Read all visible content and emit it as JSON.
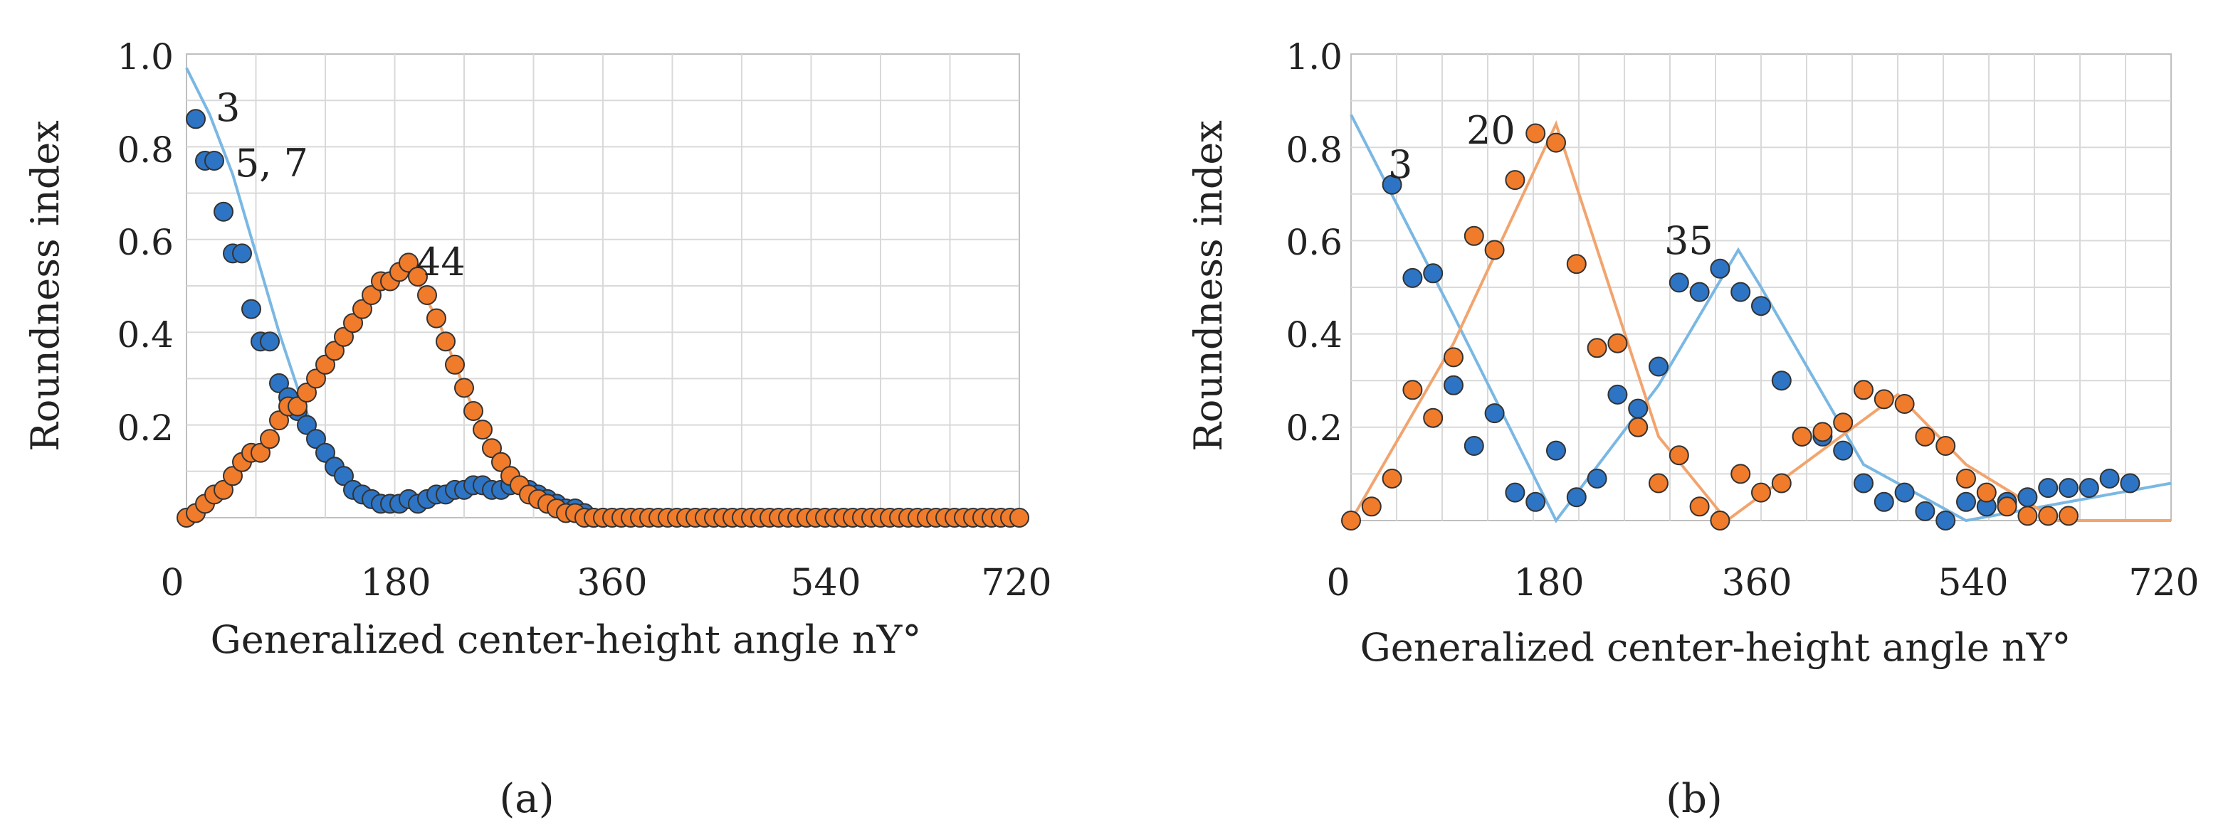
{
  "chart_data": [
    {
      "type": "scatter",
      "panel_label": "(a)",
      "ylabel": "Roundness index",
      "xlabel": "Generalized center-height angle nY°",
      "xlim": [
        0,
        720
      ],
      "ylim": [
        0,
        1.0
      ],
      "x_ticks": [
        "0",
        "180",
        "360",
        "540",
        "720"
      ],
      "y_ticks": [
        "0.2",
        "0.4",
        "0.6",
        "0.8",
        "1.0"
      ],
      "grid": true,
      "annotations": [
        {
          "text": "3",
          "x": 25,
          "y": 0.86
        },
        {
          "text": "5, 7",
          "x": 40,
          "y": 0.77
        },
        {
          "text": "44",
          "x": 190,
          "y": 0.55
        }
      ],
      "series": [
        {
          "color": "#2d74c4",
          "line_color": "#7ab8e3",
          "points": [
            [
              8,
              0.86
            ],
            [
              16,
              0.77
            ],
            [
              24,
              0.77
            ],
            [
              32,
              0.66
            ],
            [
              40,
              0.57
            ],
            [
              48,
              0.57
            ],
            [
              56,
              0.45
            ],
            [
              64,
              0.38
            ],
            [
              72,
              0.38
            ],
            [
              80,
              0.29
            ],
            [
              88,
              0.26
            ],
            [
              96,
              0.23
            ],
            [
              104,
              0.2
            ],
            [
              112,
              0.17
            ],
            [
              120,
              0.14
            ],
            [
              128,
              0.11
            ],
            [
              136,
              0.09
            ],
            [
              144,
              0.06
            ],
            [
              152,
              0.05
            ],
            [
              160,
              0.04
            ],
            [
              168,
              0.03
            ],
            [
              176,
              0.03
            ],
            [
              184,
              0.03
            ],
            [
              192,
              0.04
            ],
            [
              200,
              0.03
            ],
            [
              208,
              0.04
            ],
            [
              216,
              0.05
            ],
            [
              224,
              0.05
            ],
            [
              232,
              0.06
            ],
            [
              240,
              0.06
            ],
            [
              248,
              0.07
            ],
            [
              256,
              0.07
            ],
            [
              264,
              0.06
            ],
            [
              272,
              0.06
            ],
            [
              280,
              0.07
            ],
            [
              288,
              0.07
            ],
            [
              296,
              0.06
            ],
            [
              304,
              0.05
            ],
            [
              312,
              0.04
            ],
            [
              320,
              0.03
            ],
            [
              328,
              0.02
            ],
            [
              336,
              0.02
            ],
            [
              344,
              0.01
            ],
            [
              352,
              0.0
            ],
            [
              360,
              0.0
            ]
          ],
          "line": [
            [
              0,
              0.97
            ],
            [
              20,
              0.87
            ],
            [
              40,
              0.74
            ],
            [
              60,
              0.57
            ],
            [
              80,
              0.4
            ],
            [
              100,
              0.25
            ],
            [
              120,
              0.13
            ],
            [
              140,
              0.07
            ],
            [
              160,
              0.04
            ],
            [
              180,
              0.04
            ],
            [
              220,
              0.05
            ],
            [
              260,
              0.06
            ],
            [
              290,
              0.06
            ],
            [
              320,
              0.03
            ],
            [
              340,
              0.01
            ],
            [
              360,
              0.0
            ]
          ]
        },
        {
          "color": "#f07b2a",
          "line_color": "#f2a46e",
          "points": [
            [
              0,
              0.0
            ],
            [
              8,
              0.01
            ],
            [
              16,
              0.03
            ],
            [
              24,
              0.05
            ],
            [
              32,
              0.06
            ],
            [
              40,
              0.09
            ],
            [
              48,
              0.12
            ],
            [
              56,
              0.14
            ],
            [
              64,
              0.14
            ],
            [
              72,
              0.17
            ],
            [
              80,
              0.21
            ],
            [
              88,
              0.24
            ],
            [
              96,
              0.24
            ],
            [
              104,
              0.27
            ],
            [
              112,
              0.3
            ],
            [
              120,
              0.33
            ],
            [
              128,
              0.36
            ],
            [
              136,
              0.39
            ],
            [
              144,
              0.42
            ],
            [
              152,
              0.45
            ],
            [
              160,
              0.48
            ],
            [
              168,
              0.51
            ],
            [
              176,
              0.51
            ],
            [
              184,
              0.53
            ],
            [
              192,
              0.55
            ],
            [
              200,
              0.52
            ],
            [
              208,
              0.48
            ],
            [
              216,
              0.43
            ],
            [
              224,
              0.38
            ],
            [
              232,
              0.33
            ],
            [
              240,
              0.28
            ],
            [
              248,
              0.23
            ],
            [
              256,
              0.19
            ],
            [
              264,
              0.15
            ],
            [
              272,
              0.12
            ],
            [
              280,
              0.09
            ],
            [
              288,
              0.07
            ],
            [
              296,
              0.05
            ],
            [
              304,
              0.04
            ],
            [
              312,
              0.03
            ],
            [
              320,
              0.02
            ],
            [
              328,
              0.01
            ],
            [
              336,
              0.01
            ],
            [
              344,
              0.0
            ],
            [
              352,
              0.0
            ],
            [
              360,
              0.0
            ],
            [
              368,
              0.0
            ],
            [
              376,
              0.0
            ],
            [
              384,
              0.0
            ],
            [
              392,
              0.0
            ],
            [
              400,
              0.0
            ],
            [
              408,
              0.0
            ],
            [
              416,
              0.0
            ],
            [
              424,
              0.0
            ],
            [
              432,
              0.0
            ],
            [
              440,
              0.0
            ],
            [
              448,
              0.0
            ],
            [
              456,
              0.0
            ],
            [
              464,
              0.0
            ],
            [
              472,
              0.0
            ],
            [
              480,
              0.0
            ],
            [
              488,
              0.0
            ],
            [
              496,
              0.0
            ],
            [
              504,
              0.0
            ],
            [
              512,
              0.0
            ],
            [
              520,
              0.0
            ],
            [
              528,
              0.0
            ],
            [
              536,
              0.0
            ],
            [
              544,
              0.0
            ],
            [
              552,
              0.0
            ],
            [
              560,
              0.0
            ],
            [
              568,
              0.0
            ],
            [
              576,
              0.0
            ],
            [
              584,
              0.0
            ],
            [
              592,
              0.0
            ],
            [
              600,
              0.0
            ],
            [
              608,
              0.0
            ],
            [
              616,
              0.0
            ],
            [
              624,
              0.0
            ],
            [
              632,
              0.0
            ],
            [
              640,
              0.0
            ],
            [
              648,
              0.0
            ],
            [
              656,
              0.0
            ],
            [
              664,
              0.0
            ],
            [
              672,
              0.0
            ],
            [
              680,
              0.0
            ],
            [
              688,
              0.0
            ],
            [
              696,
              0.0
            ],
            [
              704,
              0.0
            ],
            [
              712,
              0.0
            ],
            [
              720,
              0.0
            ]
          ],
          "line": [
            [
              0,
              0.0
            ],
            [
              40,
              0.08
            ],
            [
              80,
              0.2
            ],
            [
              120,
              0.33
            ],
            [
              160,
              0.47
            ],
            [
              190,
              0.55
            ],
            [
              200,
              0.51
            ],
            [
              220,
              0.41
            ],
            [
              240,
              0.28
            ],
            [
              260,
              0.17
            ],
            [
              280,
              0.09
            ],
            [
              310,
              0.03
            ],
            [
              340,
              0.0
            ],
            [
              720,
              0.0
            ]
          ]
        }
      ]
    },
    {
      "type": "scatter",
      "panel_label": "(b)",
      "ylabel": "Roundness index",
      "xlabel": "Generalized center-height angle nY°",
      "xlim": [
        0,
        720
      ],
      "ylim": [
        0,
        1.0
      ],
      "x_ticks": [
        "0",
        "180",
        "360",
        "540",
        "720"
      ],
      "y_ticks": [
        "0.2",
        "0.4",
        "0.6",
        "0.8",
        "1.0"
      ],
      "grid": true,
      "annotations": [
        {
          "text": "3",
          "x": 50,
          "y": 0.72
        },
        {
          "text": "20",
          "x": 140,
          "y": 0.83
        },
        {
          "text": "35",
          "x": 305,
          "y": 0.55
        }
      ],
      "series": [
        {
          "color": "#2d74c4",
          "line_color": "#7ab8e3",
          "points": [
            [
              36,
              0.72
            ],
            [
              54,
              0.52
            ],
            [
              72,
              0.53
            ],
            [
              90,
              0.29
            ],
            [
              108,
              0.16
            ],
            [
              126,
              0.23
            ],
            [
              144,
              0.06
            ],
            [
              162,
              0.04
            ],
            [
              180,
              0.15
            ],
            [
              198,
              0.05
            ],
            [
              216,
              0.09
            ],
            [
              234,
              0.27
            ],
            [
              252,
              0.24
            ],
            [
              270,
              0.33
            ],
            [
              288,
              0.51
            ],
            [
              306,
              0.49
            ],
            [
              324,
              0.54
            ],
            [
              342,
              0.49
            ],
            [
              360,
              0.46
            ],
            [
              378,
              0.3
            ],
            [
              396,
              0.18
            ],
            [
              414,
              0.18
            ],
            [
              432,
              0.15
            ],
            [
              450,
              0.08
            ],
            [
              468,
              0.04
            ],
            [
              486,
              0.06
            ],
            [
              504,
              0.02
            ],
            [
              522,
              0.0
            ],
            [
              540,
              0.04
            ],
            [
              558,
              0.03
            ],
            [
              576,
              0.04
            ],
            [
              594,
              0.05
            ],
            [
              612,
              0.07
            ],
            [
              630,
              0.07
            ],
            [
              648,
              0.07
            ],
            [
              666,
              0.09
            ],
            [
              684,
              0.08
            ]
          ],
          "line": [
            [
              0,
              0.87
            ],
            [
              90,
              0.44
            ],
            [
              180,
              0.0
            ],
            [
              270,
              0.29
            ],
            [
              340,
              0.58
            ],
            [
              360,
              0.5
            ],
            [
              450,
              0.12
            ],
            [
              540,
              0.0
            ],
            [
              720,
              0.08
            ]
          ]
        },
        {
          "color": "#f07b2a",
          "line_color": "#f2a46e",
          "points": [
            [
              0,
              0.0
            ],
            [
              18,
              0.03
            ],
            [
              36,
              0.09
            ],
            [
              54,
              0.28
            ],
            [
              72,
              0.22
            ],
            [
              90,
              0.35
            ],
            [
              108,
              0.61
            ],
            [
              126,
              0.58
            ],
            [
              144,
              0.73
            ],
            [
              162,
              0.83
            ],
            [
              180,
              0.81
            ],
            [
              198,
              0.55
            ],
            [
              216,
              0.37
            ],
            [
              234,
              0.38
            ],
            [
              252,
              0.2
            ],
            [
              270,
              0.08
            ],
            [
              288,
              0.14
            ],
            [
              306,
              0.03
            ],
            [
              324,
              0.0
            ],
            [
              342,
              0.1
            ],
            [
              360,
              0.06
            ],
            [
              378,
              0.08
            ],
            [
              396,
              0.18
            ],
            [
              414,
              0.19
            ],
            [
              432,
              0.21
            ],
            [
              450,
              0.28
            ],
            [
              468,
              0.26
            ],
            [
              486,
              0.25
            ],
            [
              504,
              0.18
            ],
            [
              522,
              0.16
            ],
            [
              540,
              0.09
            ],
            [
              558,
              0.06
            ],
            [
              576,
              0.03
            ],
            [
              594,
              0.01
            ],
            [
              612,
              0.01
            ],
            [
              630,
              0.01
            ]
          ],
          "line": [
            [
              0,
              0.0
            ],
            [
              90,
              0.38
            ],
            [
              180,
              0.85
            ],
            [
              270,
              0.18
            ],
            [
              330,
              0.0
            ],
            [
              430,
              0.18
            ],
            [
              480,
              0.27
            ],
            [
              540,
              0.12
            ],
            [
              620,
              0.0
            ],
            [
              720,
              0.0
            ]
          ]
        }
      ]
    }
  ]
}
